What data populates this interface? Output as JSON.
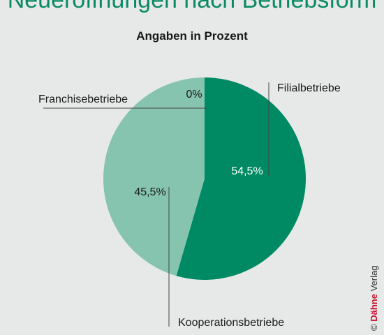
{
  "chart_data": {
    "type": "pie",
    "title": "Neueröffnungen nach Betriebsform",
    "subtitle": "Angaben in Prozent",
    "slices": [
      {
        "label": "Filialbetriebe",
        "value": 54.5,
        "value_label": "54,5%",
        "color": "#008a63",
        "value_text_color": "#ffffff"
      },
      {
        "label": "Kooperationsbetriebe",
        "value": 45.5,
        "value_label": "45,5%",
        "color": "#86c4b0",
        "value_text_color": "#1a1a1a"
      },
      {
        "label": "Franchisebetriebe",
        "value": 0,
        "value_label": "0%",
        "color": "#86c4b0",
        "value_text_color": "#1a1a1a"
      }
    ]
  },
  "credit": {
    "symbol": "©",
    "brand": "Dähne",
    "suffix": "Verlag"
  },
  "colors": {
    "title": "#0a8a63",
    "background": "#e6e9e8",
    "leader_line": "#444444"
  }
}
